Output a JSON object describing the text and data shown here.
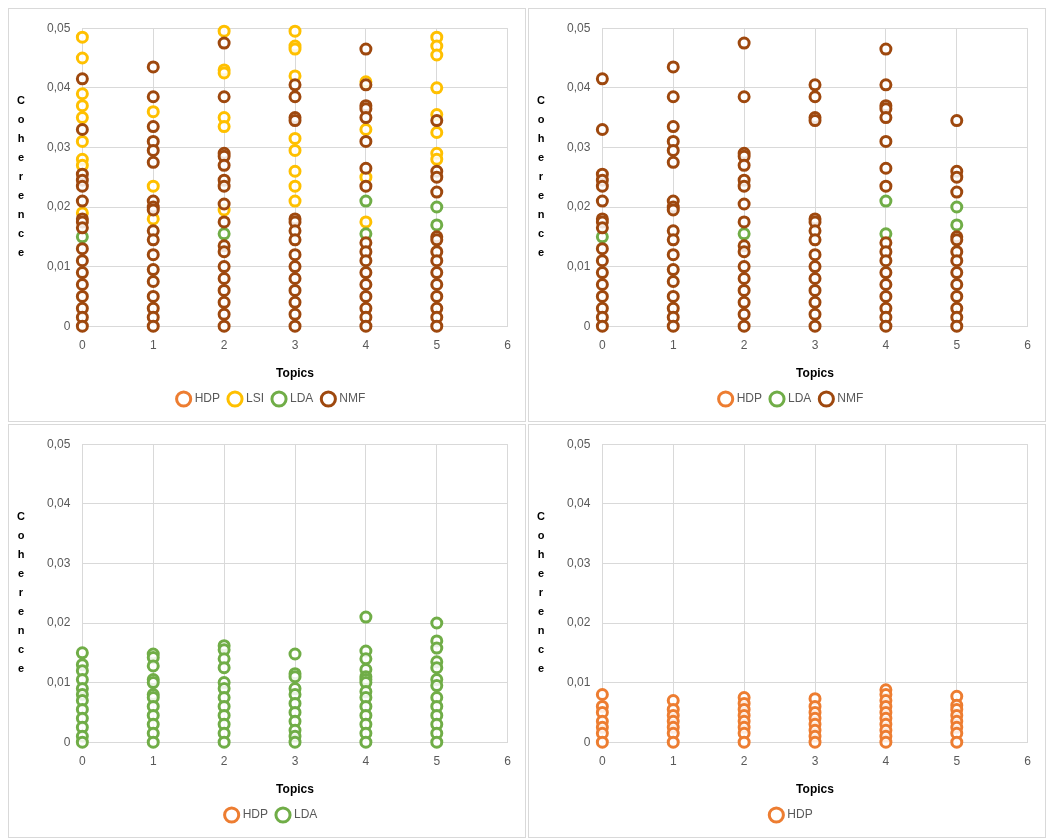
{
  "chart_data": [
    {
      "type": "scatter",
      "xlabel": "Topics",
      "ylabel": "Coherence",
      "xlim": [
        0,
        6
      ],
      "xticks": [
        0,
        1,
        2,
        3,
        4,
        5,
        6
      ],
      "ylim": [
        0,
        0.05
      ],
      "yticks": [
        {
          "value": 0,
          "label": "0"
        },
        {
          "value": 0.01,
          "label": "0,01"
        },
        {
          "value": 0.02,
          "label": "0,02"
        },
        {
          "value": 0.03,
          "label": "0,03"
        },
        {
          "value": 0.04,
          "label": "0,04"
        },
        {
          "value": 0.05,
          "label": "0,05"
        }
      ],
      "grid": true,
      "legend": "bottom",
      "marker": "circle",
      "series": [
        {
          "name": "HDP",
          "color": "#ed7d31"
        },
        {
          "name": "LSI",
          "color": "#ffc000",
          "x": [
            0,
            0,
            0,
            0,
            0,
            0,
            0,
            0,
            0,
            1,
            1,
            1,
            2,
            2,
            2,
            2,
            2,
            2,
            3,
            3,
            3,
            3,
            3,
            3,
            3,
            3,
            3,
            4,
            4,
            4,
            4,
            5,
            5,
            5,
            5,
            5,
            5,
            5,
            5
          ],
          "values": [
            0.0485,
            0.045,
            0.039,
            0.037,
            0.035,
            0.031,
            0.028,
            0.027,
            0.019,
            0.036,
            0.0235,
            0.018,
            0.0495,
            0.043,
            0.0425,
            0.035,
            0.0335,
            0.0195,
            0.0495,
            0.047,
            0.0465,
            0.042,
            0.0315,
            0.0295,
            0.026,
            0.0235,
            0.021,
            0.041,
            0.033,
            0.025,
            0.0175,
            0.0485,
            0.047,
            0.0455,
            0.04,
            0.0355,
            0.0325,
            0.029,
            0.028
          ]
        },
        {
          "name": "LDA",
          "color": "#70ad47",
          "x": [
            0,
            2,
            4,
            4,
            5,
            5
          ],
          "values": [
            0.015,
            0.0155,
            0.021,
            0.0155,
            0.02,
            0.017
          ]
        },
        {
          "name": "NMF",
          "color": "#9e480e",
          "x": [
            0,
            0,
            0,
            0,
            0,
            0,
            0,
            0,
            0,
            0,
            0,
            0,
            0,
            0,
            0,
            0,
            0,
            1,
            1,
            1,
            1,
            1,
            1,
            1,
            1,
            1,
            1,
            1,
            1,
            1,
            1,
            1,
            1,
            1,
            1,
            2,
            2,
            2,
            2,
            2,
            2,
            2,
            2,
            2,
            2,
            2,
            2,
            2,
            2,
            2,
            2,
            2,
            3,
            3,
            3,
            3,
            3,
            3,
            3,
            3,
            3,
            3,
            3,
            3,
            3,
            3,
            3,
            4,
            4,
            4,
            4,
            4,
            4,
            4,
            4,
            4,
            4,
            4,
            4,
            4,
            4,
            4,
            4,
            4,
            5,
            5,
            5,
            5,
            5,
            5,
            5,
            5,
            5,
            5,
            5,
            5,
            5,
            5
          ],
          "values": [
            0.0415,
            0.033,
            0.0255,
            0.0245,
            0.0235,
            0.021,
            0.018,
            0.0175,
            0.0165,
            0.013,
            0.011,
            0.009,
            0.007,
            0.005,
            0.003,
            0.0015,
            0,
            0.0435,
            0.0385,
            0.0335,
            0.031,
            0.0295,
            0.0275,
            0.021,
            0.02,
            0.0195,
            0.016,
            0.0145,
            0.012,
            0.0095,
            0.0075,
            0.005,
            0.003,
            0.0015,
            0,
            0.0475,
            0.0385,
            0.029,
            0.0285,
            0.027,
            0.0245,
            0.0235,
            0.0205,
            0.0175,
            0.0135,
            0.0125,
            0.01,
            0.008,
            0.006,
            0.004,
            0.002,
            0,
            0.0405,
            0.0385,
            0.035,
            0.0345,
            0.018,
            0.0175,
            0.016,
            0.0145,
            0.012,
            0.01,
            0.008,
            0.006,
            0.004,
            0.002,
            0,
            0.0465,
            0.0405,
            0.037,
            0.0365,
            0.035,
            0.031,
            0.0265,
            0.0235,
            0.014,
            0.0125,
            0.011,
            0.009,
            0.007,
            0.005,
            0.003,
            0.0015,
            0,
            0.0345,
            0.026,
            0.025,
            0.0225,
            0.015,
            0.0145,
            0.0125,
            0.011,
            0.009,
            0.007,
            0.005,
            0.003,
            0.0015,
            0
          ]
        }
      ]
    },
    {
      "type": "scatter",
      "xlabel": "Topics",
      "ylabel": "Coherence",
      "xlim": [
        0,
        6
      ],
      "xticks": [
        0,
        1,
        2,
        3,
        4,
        5,
        6
      ],
      "ylim": [
        0,
        0.05
      ],
      "yticks": [
        {
          "value": 0,
          "label": "0"
        },
        {
          "value": 0.01,
          "label": "0,01"
        },
        {
          "value": 0.02,
          "label": "0,02"
        },
        {
          "value": 0.03,
          "label": "0,03"
        },
        {
          "value": 0.04,
          "label": "0,04"
        },
        {
          "value": 0.05,
          "label": "0,05"
        }
      ],
      "grid": true,
      "legend": "bottom",
      "marker": "circle",
      "series": [
        {
          "name": "HDP",
          "color": "#ed7d31"
        },
        {
          "name": "LDA",
          "color": "#70ad47",
          "x": [
            0,
            2,
            4,
            4,
            5,
            5
          ],
          "values": [
            0.015,
            0.0155,
            0.021,
            0.0155,
            0.02,
            0.017
          ]
        },
        {
          "name": "NMF",
          "color": "#9e480e",
          "x": [
            0,
            0,
            0,
            0,
            0,
            0,
            0,
            0,
            0,
            0,
            0,
            0,
            0,
            0,
            0,
            0,
            0,
            1,
            1,
            1,
            1,
            1,
            1,
            1,
            1,
            1,
            1,
            1,
            1,
            1,
            1,
            1,
            1,
            1,
            1,
            2,
            2,
            2,
            2,
            2,
            2,
            2,
            2,
            2,
            2,
            2,
            2,
            2,
            2,
            2,
            2,
            2,
            3,
            3,
            3,
            3,
            3,
            3,
            3,
            3,
            3,
            3,
            3,
            3,
            3,
            3,
            3,
            4,
            4,
            4,
            4,
            4,
            4,
            4,
            4,
            4,
            4,
            4,
            4,
            4,
            4,
            4,
            4,
            4,
            5,
            5,
            5,
            5,
            5,
            5,
            5,
            5,
            5,
            5,
            5,
            5,
            5,
            5
          ],
          "values": [
            0.0415,
            0.033,
            0.0255,
            0.0245,
            0.0235,
            0.021,
            0.018,
            0.0175,
            0.0165,
            0.013,
            0.011,
            0.009,
            0.007,
            0.005,
            0.003,
            0.0015,
            0,
            0.0435,
            0.0385,
            0.0335,
            0.031,
            0.0295,
            0.0275,
            0.021,
            0.02,
            0.0195,
            0.016,
            0.0145,
            0.012,
            0.0095,
            0.0075,
            0.005,
            0.003,
            0.0015,
            0,
            0.0475,
            0.0385,
            0.029,
            0.0285,
            0.027,
            0.0245,
            0.0235,
            0.0205,
            0.0175,
            0.0135,
            0.0125,
            0.01,
            0.008,
            0.006,
            0.004,
            0.002,
            0,
            0.0405,
            0.0385,
            0.035,
            0.0345,
            0.018,
            0.0175,
            0.016,
            0.0145,
            0.012,
            0.01,
            0.008,
            0.006,
            0.004,
            0.002,
            0,
            0.0465,
            0.0405,
            0.037,
            0.0365,
            0.035,
            0.031,
            0.0265,
            0.0235,
            0.014,
            0.0125,
            0.011,
            0.009,
            0.007,
            0.005,
            0.003,
            0.0015,
            0,
            0.0345,
            0.026,
            0.025,
            0.0225,
            0.015,
            0.0145,
            0.0125,
            0.011,
            0.009,
            0.007,
            0.005,
            0.003,
            0.0015,
            0
          ]
        }
      ]
    },
    {
      "type": "scatter",
      "xlabel": "Topics",
      "ylabel": "Coherence",
      "xlim": [
        0,
        6
      ],
      "xticks": [
        0,
        1,
        2,
        3,
        4,
        5,
        6
      ],
      "ylim": [
        0,
        0.05
      ],
      "yticks": [
        {
          "value": 0,
          "label": "0"
        },
        {
          "value": 0.01,
          "label": "0,01"
        },
        {
          "value": 0.02,
          "label": "0,02"
        },
        {
          "value": 0.03,
          "label": "0,03"
        },
        {
          "value": 0.04,
          "label": "0,04"
        },
        {
          "value": 0.05,
          "label": "0,05"
        }
      ],
      "grid": true,
      "legend": "bottom",
      "marker": "circle",
      "series": [
        {
          "name": "HDP",
          "color": "#ed7d31"
        },
        {
          "name": "LDA",
          "color": "#70ad47",
          "x": [
            0,
            0,
            0,
            0,
            0,
            0,
            0,
            0,
            0,
            0,
            0,
            0,
            1,
            1,
            1,
            1,
            1,
            1,
            1,
            1,
            1,
            1,
            1,
            1,
            2,
            2,
            2,
            2,
            2,
            2,
            2,
            2,
            2,
            2,
            2,
            2,
            3,
            3,
            3,
            3,
            3,
            3,
            3,
            3,
            3,
            3,
            3,
            4,
            4,
            4,
            4,
            4,
            4,
            4,
            4,
            4,
            4,
            4,
            4,
            4,
            4,
            5,
            5,
            5,
            5,
            5,
            5,
            5,
            5,
            5,
            5,
            5,
            5,
            5
          ],
          "values": [
            0.015,
            0.013,
            0.012,
            0.0105,
            0.009,
            0.008,
            0.007,
            0.0055,
            0.004,
            0.0025,
            0.001,
            0,
            0.0148,
            0.0142,
            0.0128,
            0.0105,
            0.01,
            0.008,
            0.0075,
            0.006,
            0.0045,
            0.003,
            0.0015,
            0,
            0.0162,
            0.0155,
            0.014,
            0.0125,
            0.01,
            0.009,
            0.0075,
            0.006,
            0.0045,
            0.003,
            0.0015,
            0,
            0.0148,
            0.0115,
            0.011,
            0.009,
            0.008,
            0.0065,
            0.005,
            0.0035,
            0.002,
            0.001,
            0,
            0.021,
            0.0153,
            0.014,
            0.0122,
            0.011,
            0.0105,
            0.01,
            0.0085,
            0.0075,
            0.006,
            0.0045,
            0.003,
            0.0015,
            0,
            0.02,
            0.017,
            0.0158,
            0.0135,
            0.0125,
            0.0105,
            0.0095,
            0.0075,
            0.006,
            0.0045,
            0.003,
            0.0015,
            0
          ]
        }
      ]
    },
    {
      "type": "scatter",
      "xlabel": "Topics",
      "ylabel": "Coherence",
      "xlim": [
        0,
        6
      ],
      "xticks": [
        0,
        1,
        2,
        3,
        4,
        5,
        6
      ],
      "ylim": [
        0,
        0.05
      ],
      "yticks": [
        {
          "value": 0,
          "label": "0"
        },
        {
          "value": 0.01,
          "label": "0,01"
        },
        {
          "value": 0.02,
          "label": "0,02"
        },
        {
          "value": 0.03,
          "label": "0,03"
        },
        {
          "value": 0.04,
          "label": "0,04"
        },
        {
          "value": 0.05,
          "label": "0,05"
        }
      ],
      "grid": true,
      "legend": "bottom",
      "marker": "circle",
      "series": [
        {
          "name": "HDP",
          "color": "#ed7d31",
          "x": [
            0,
            0,
            0,
            0,
            0,
            0,
            0,
            1,
            1,
            1,
            1,
            1,
            1,
            1,
            2,
            2,
            2,
            2,
            2,
            2,
            2,
            2,
            3,
            3,
            3,
            3,
            3,
            3,
            3,
            3,
            4,
            4,
            4,
            4,
            4,
            4,
            4,
            4,
            4,
            4,
            5,
            5,
            5,
            5,
            5,
            5,
            5,
            5
          ],
          "values": [
            0.008,
            0.006,
            0.005,
            0.0035,
            0.0025,
            0.0015,
            0,
            0.007,
            0.0055,
            0.0045,
            0.0035,
            0.0025,
            0.0015,
            0,
            0.0075,
            0.0065,
            0.0055,
            0.0045,
            0.0035,
            0.0025,
            0.0015,
            0,
            0.0073,
            0.006,
            0.005,
            0.004,
            0.003,
            0.002,
            0.001,
            0,
            0.0088,
            0.008,
            0.007,
            0.006,
            0.005,
            0.004,
            0.003,
            0.002,
            0.001,
            0,
            0.0077,
            0.0062,
            0.0055,
            0.0045,
            0.0035,
            0.0025,
            0.0015,
            0
          ]
        }
      ]
    }
  ]
}
